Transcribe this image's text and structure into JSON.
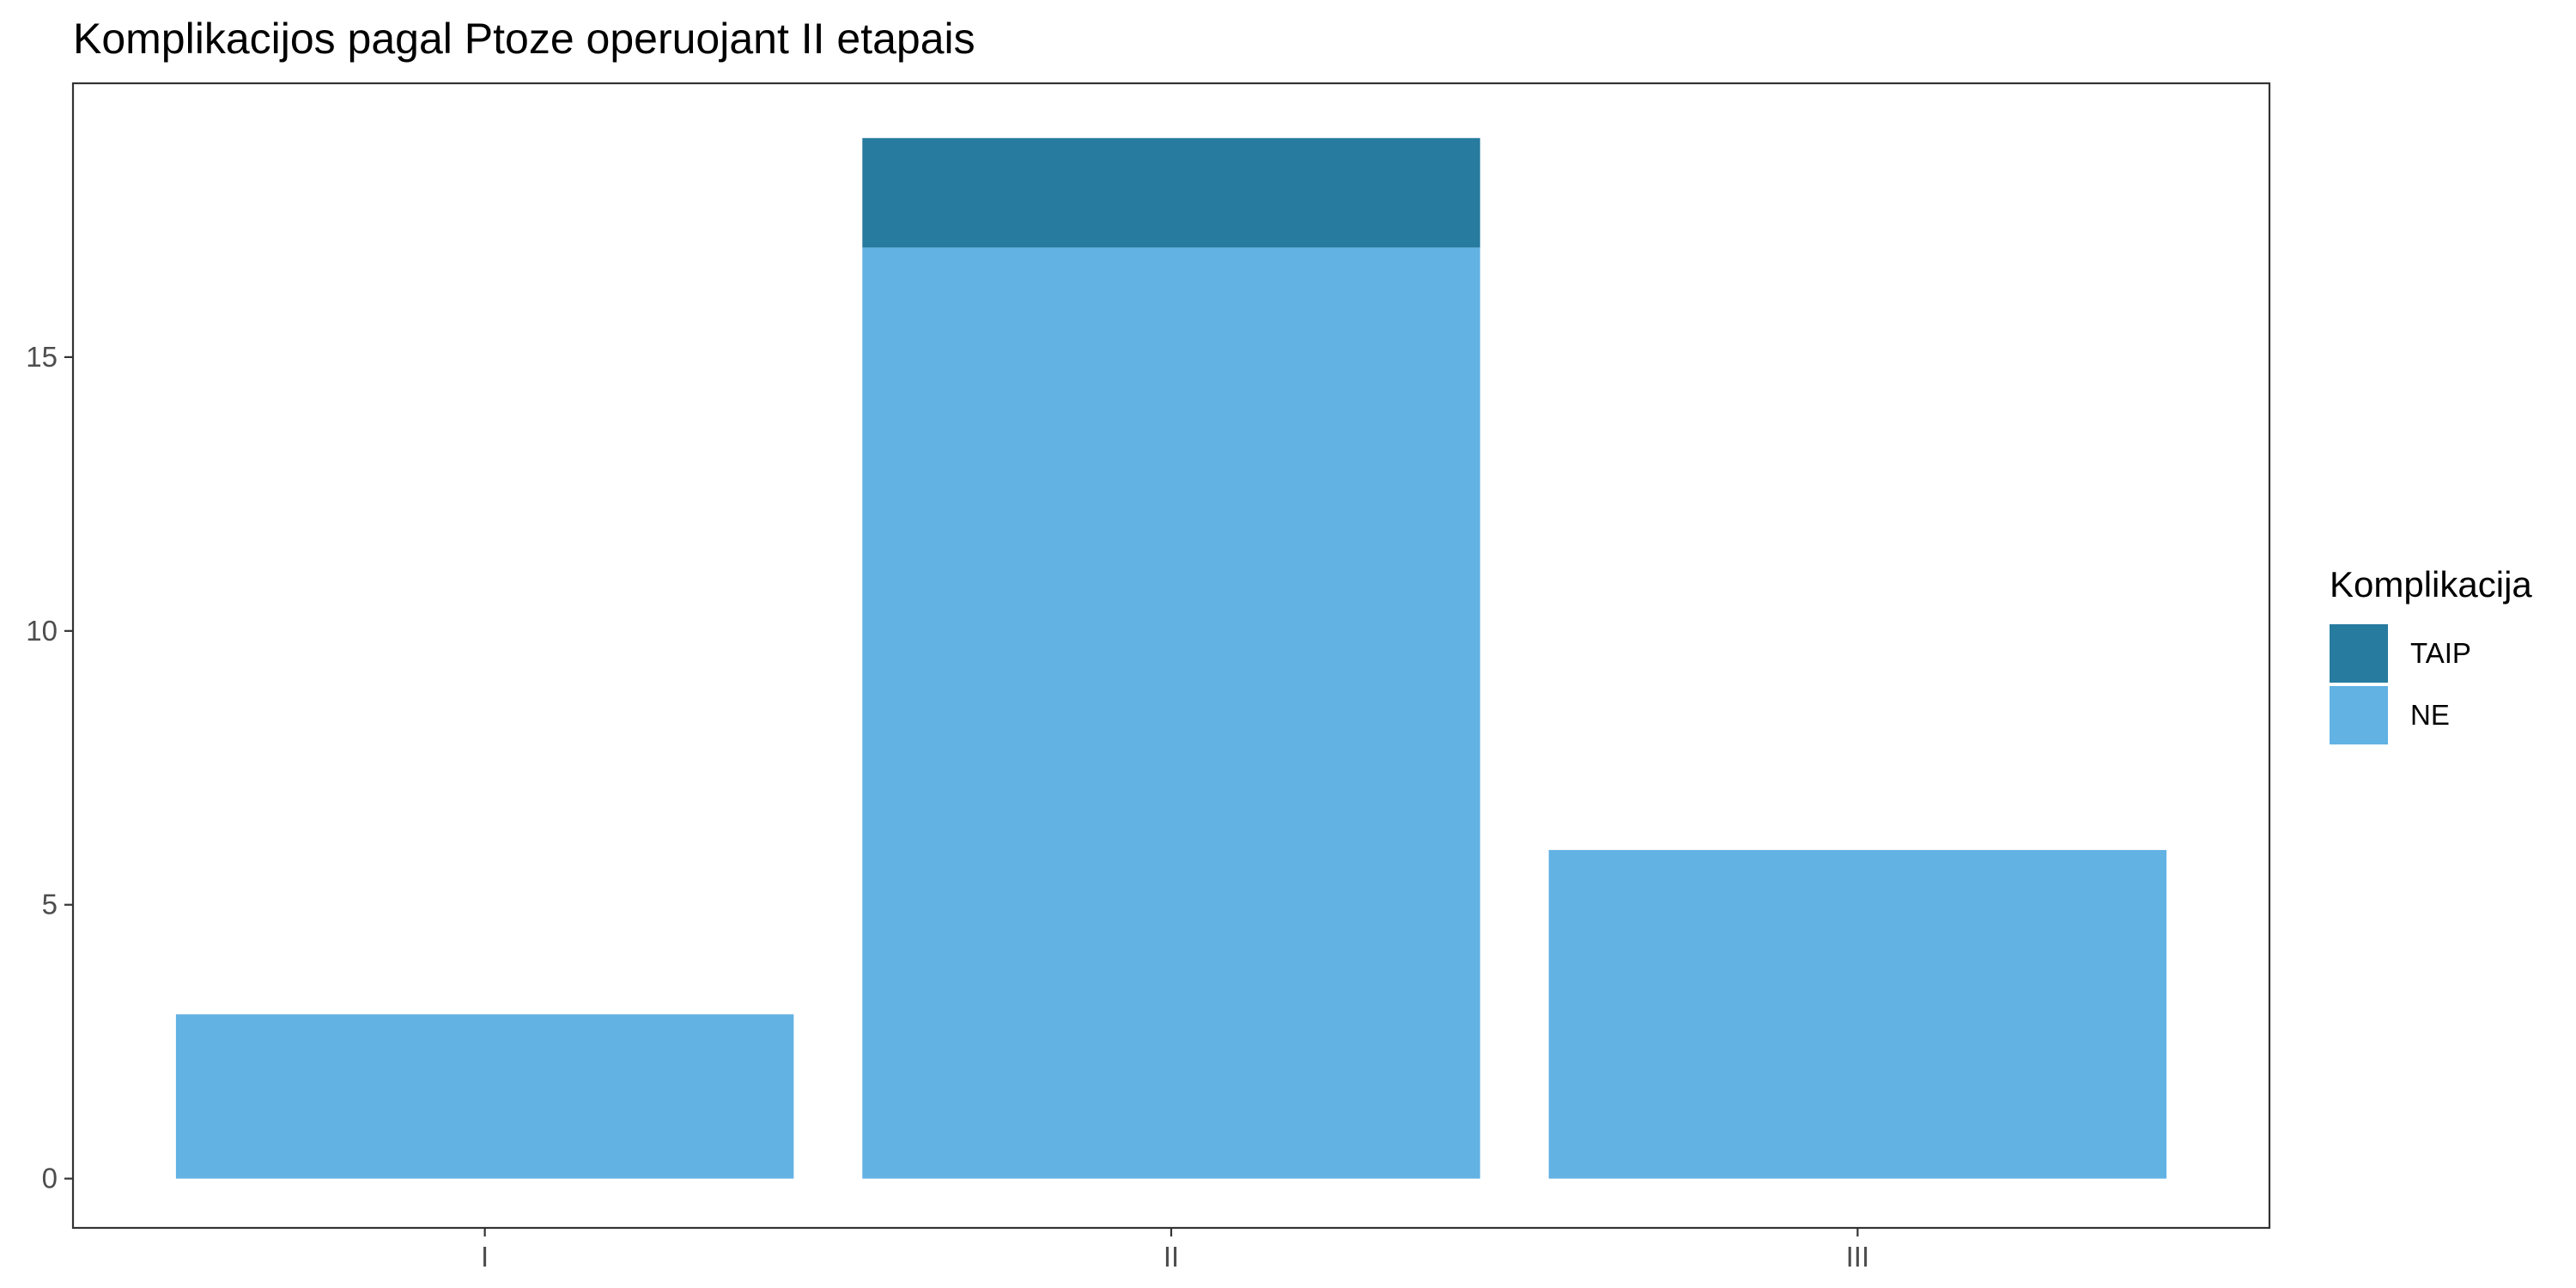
{
  "chart_data": {
    "type": "bar",
    "stacked": true,
    "title": "Komplikacijos pagal Ptoze operuojant II etapais",
    "xlabel": "",
    "ylabel": "",
    "categories": [
      "I",
      "II",
      "III"
    ],
    "series": [
      {
        "name": "NE",
        "values": [
          3,
          17,
          6
        ],
        "color": "#62b2e4"
      },
      {
        "name": "TAIP",
        "values": [
          0,
          2,
          0
        ],
        "color": "#277b9f"
      }
    ],
    "ylim": [
      -0.9,
      20
    ],
    "yticks": [
      0,
      5,
      10,
      15
    ],
    "grid": false,
    "legend": {
      "title": "Komplikacija",
      "position": "right",
      "order": [
        "TAIP",
        "NE"
      ]
    }
  }
}
